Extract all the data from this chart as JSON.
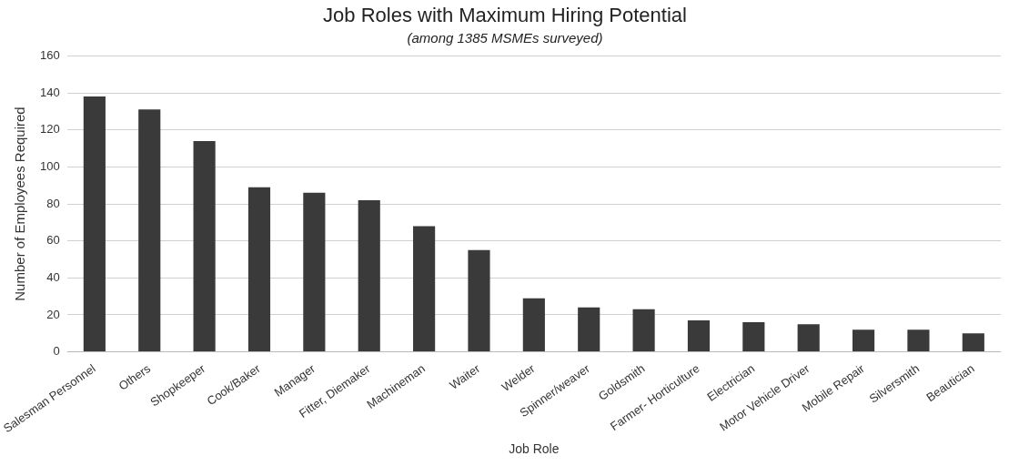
{
  "chart_data": {
    "type": "bar",
    "title": "Job Roles with Maximum Hiring Potential",
    "subtitle": "(among 1385 MSMEs surveyed)",
    "xlabel": "Job Role",
    "ylabel": "Number of Employees Required",
    "categories": [
      "Salesman Personnel",
      "Others",
      "Shopkeeper",
      "Cook/Baker",
      "Manager",
      "Fitter, Diemaker",
      "Machineman",
      "Waiter",
      "Welder",
      "Spinner/weaver",
      "Goldsmith",
      "Farmer- Horticulture",
      "Electrician",
      "Motor Vehicle Driver",
      "Mobile Repair",
      "Silversmith",
      "Beautician"
    ],
    "values": [
      138,
      131,
      114,
      89,
      86,
      82,
      68,
      55,
      29,
      24,
      23,
      17,
      16,
      15,
      12,
      12,
      10
    ],
    "color": "#3a3a3a",
    "ylim": [
      0,
      160
    ],
    "yticks": [
      0,
      20,
      40,
      60,
      80,
      100,
      120,
      140,
      160
    ],
    "grid": "y"
  }
}
